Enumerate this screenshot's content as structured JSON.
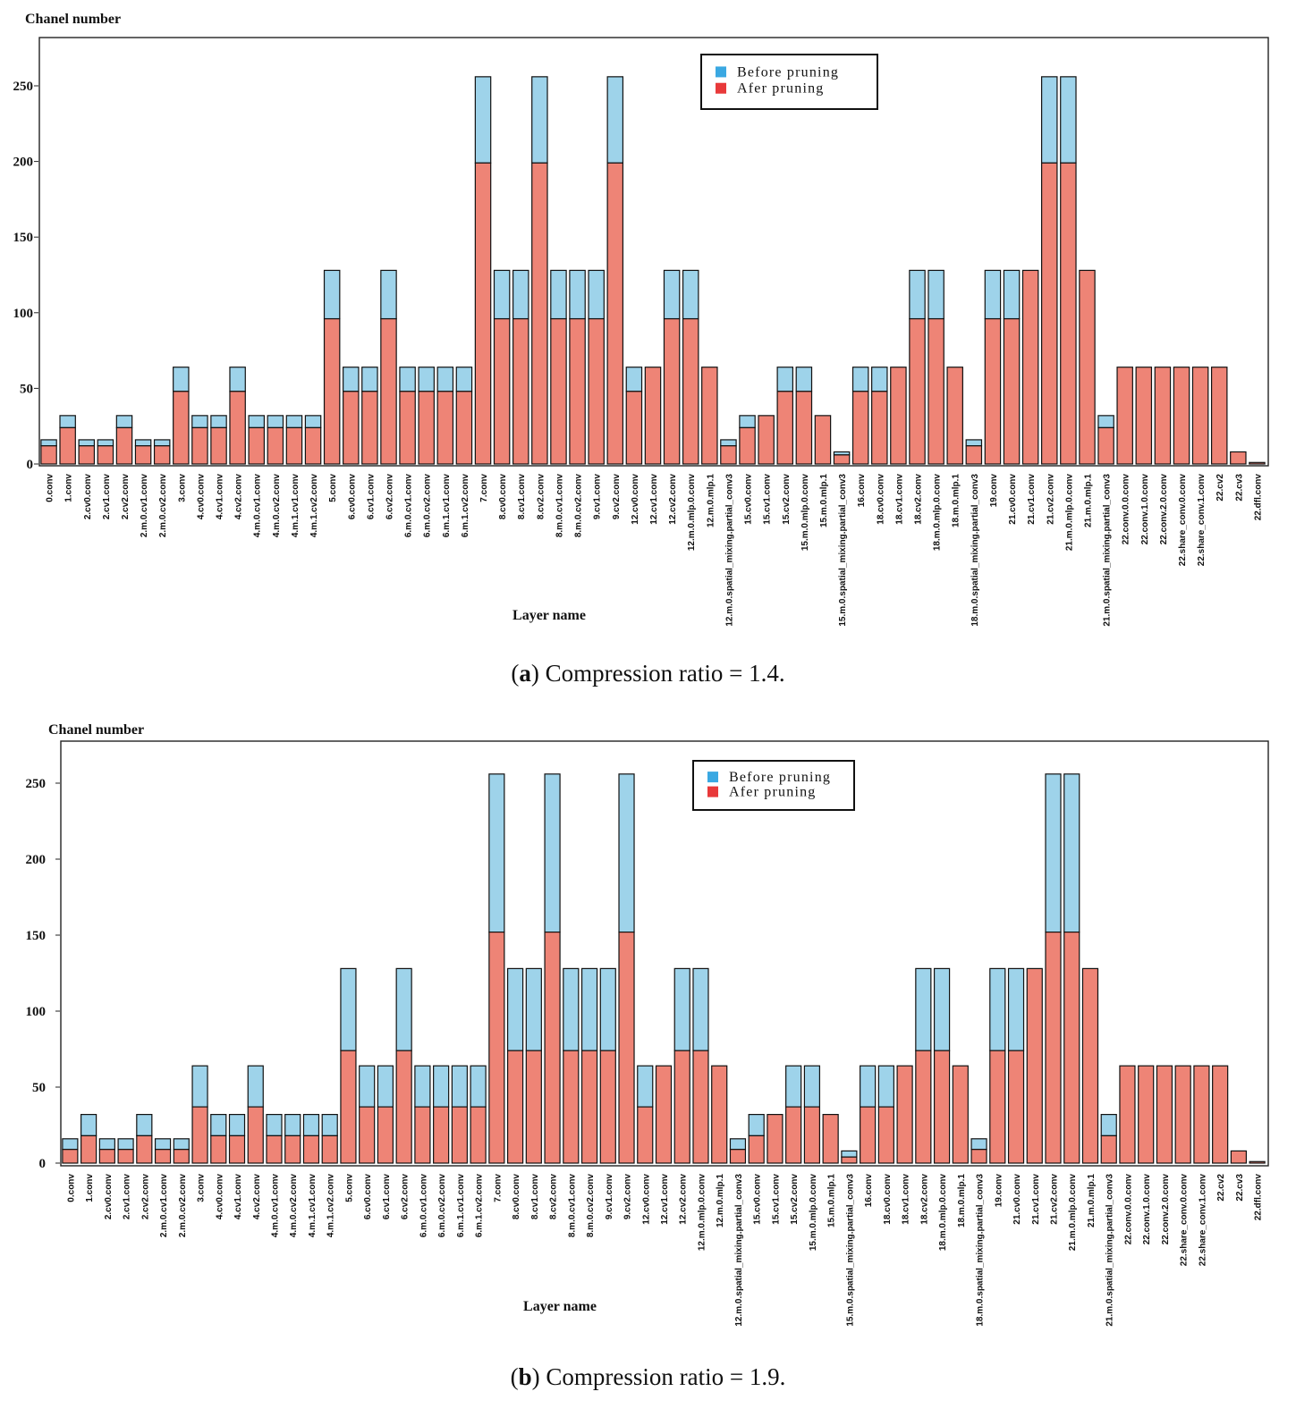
{
  "chart_data": [
    {
      "type": "bar",
      "ylabel": "Chanel number",
      "xlabel": "Layer name",
      "ylim": [
        0,
        270
      ],
      "yticks": [
        0,
        50,
        100,
        150,
        200,
        250
      ],
      "legend_position": "top-center",
      "caption": {
        "tag": "a",
        "text": ") Compression ratio = 1.4."
      },
      "categories": [
        "0.conv",
        "1.conv",
        "2.cv0.conv",
        "2.cv1.conv",
        "2.cv2.conv",
        "2.m.0.cv1.conv",
        "2.m.0.cv2.conv",
        "3.conv",
        "4.cv0.conv",
        "4.cv1.conv",
        "4.cv2.conv",
        "4.m.0.cv1.conv",
        "4.m.0.cv2.conv",
        "4.m.1.cv1.conv",
        "4.m.1.cv2.conv",
        "5.conv",
        "6.cv0.conv",
        "6.cv1.conv",
        "6.cv2.conv",
        "6.m.0.cv1.conv",
        "6.m.0.cv2.conv",
        "6.m.1.cv1.conv",
        "6.m.1.cv2.conv",
        "7.conv",
        "8.cv0.conv",
        "8.cv1.conv",
        "8.cv2.conv",
        "8.m.0.cv1.conv",
        "8.m.0.cv2.conv",
        "9.cv1.conv",
        "9.cv2.conv",
        "12.cv0.conv",
        "12.cv1.conv",
        "12.cv2.conv",
        "12.m.0.mlp.0.conv",
        "12.m.0.mlp.1",
        "12.m.0.spatial_mixing.partial_conv3",
        "15.cv0.conv",
        "15.cv1.conv",
        "15.cv2.conv",
        "15.m.0.mlp.0.conv",
        "15.m.0.mlp.1",
        "15.m.0.spatial_mixing.partial_conv3",
        "16.conv",
        "18.cv0.conv",
        "18.cv1.conv",
        "18.cv2.conv",
        "18.m.0.mlp.0.conv",
        "18.m.0.mlp.1",
        "18.m.0.spatial_mixing.partial_conv3",
        "19.conv",
        "21.cv0.conv",
        "21.cv1.conv",
        "21.cv2.conv",
        "21.m.0.mlp.0.conv",
        "21.m.0.mlp.1",
        "21.m.0.spatial_mixing.partial_conv3",
        "22.conv.0.0.conv",
        "22.conv.1.0.conv",
        "22.conv.2.0.conv",
        "22.share_conv.0.conv",
        "22.share_conv.1.conv",
        "22.cv2",
        "22.cv3",
        "22.dfl.conv"
      ],
      "series": [
        {
          "name": "Before pruning",
          "color": "#9ed3ea",
          "values": [
            16,
            32,
            16,
            16,
            32,
            16,
            16,
            64,
            32,
            32,
            64,
            32,
            32,
            32,
            32,
            128,
            64,
            64,
            128,
            64,
            64,
            64,
            64,
            256,
            128,
            128,
            256,
            128,
            128,
            128,
            256,
            64,
            64,
            128,
            128,
            64,
            16,
            32,
            32,
            64,
            64,
            32,
            8,
            64,
            64,
            64,
            128,
            128,
            64,
            16,
            128,
            128,
            128,
            256,
            256,
            128,
            32,
            64,
            64,
            64,
            64,
            64,
            64,
            8,
            1
          ]
        },
        {
          "name": "Afer pruning",
          "color": "#ee8476",
          "values": [
            12,
            24,
            12,
            12,
            24,
            12,
            12,
            48,
            24,
            24,
            48,
            24,
            24,
            24,
            24,
            96,
            48,
            48,
            96,
            48,
            48,
            48,
            48,
            199,
            96,
            96,
            199,
            96,
            96,
            96,
            199,
            48,
            64,
            96,
            96,
            64,
            12,
            24,
            32,
            48,
            48,
            32,
            6,
            48,
            48,
            64,
            96,
            96,
            64,
            12,
            96,
            96,
            128,
            199,
            199,
            128,
            24,
            64,
            64,
            64,
            64,
            64,
            64,
            8,
            1
          ]
        }
      ]
    },
    {
      "type": "bar",
      "ylabel": "Chanel number",
      "xlabel": "Layer name",
      "ylim": [
        0,
        270
      ],
      "yticks": [
        0,
        50,
        100,
        150,
        200,
        250
      ],
      "legend_position": "top-center",
      "caption": {
        "tag": "b",
        "text": ") Compression ratio = 1.9."
      },
      "categories": [
        "0.conv",
        "1.conv",
        "2.cv0.conv",
        "2.cv1.conv",
        "2.cv2.conv",
        "2.m.0.cv1.conv",
        "2.m.0.cv2.conv",
        "3.conv",
        "4.cv0.conv",
        "4.cv1.conv",
        "4.cv2.conv",
        "4.m.0.cv1.conv",
        "4.m.0.cv2.conv",
        "4.m.1.cv1.conv",
        "4.m.1.cv2.conv",
        "5.conv",
        "6.cv0.conv",
        "6.cv1.conv",
        "6.cv2.conv",
        "6.m.0.cv1.conv",
        "6.m.0.cv2.conv",
        "6.m.1.cv1.conv",
        "6.m.1.cv2.conv",
        "7.conv",
        "8.cv0.conv",
        "8.cv1.conv",
        "8.cv2.conv",
        "8.m.0.cv1.conv",
        "8.m.0.cv2.conv",
        "9.cv1.conv",
        "9.cv2.conv",
        "12.cv0.conv",
        "12.cv1.conv",
        "12.cv2.conv",
        "12.m.0.mlp.0.conv",
        "12.m.0.mlp.1",
        "12.m.0.spatial_mixing.partial_conv3",
        "15.cv0.conv",
        "15.cv1.conv",
        "15.cv2.conv",
        "15.m.0.mlp.0.conv",
        "15.m.0.mlp.1",
        "15.m.0.spatial_mixing.partial_conv3",
        "16.conv",
        "18.cv0.conv",
        "18.cv1.conv",
        "18.cv2.conv",
        "18.m.0.mlp.0.conv",
        "18.m.0.mlp.1",
        "18.m.0.spatial_mixing.partial_conv3",
        "19.conv",
        "21.cv0.conv",
        "21.cv1.conv",
        "21.cv2.conv",
        "21.m.0.mlp.0.conv",
        "21.m.0.mlp.1",
        "21.m.0.spatial_mixing.partial_conv3",
        "22.conv.0.0.conv",
        "22.conv.1.0.conv",
        "22.conv.2.0.conv",
        "22.share_conv.0.conv",
        "22.share_conv.1.conv",
        "22.cv2",
        "22.cv3",
        "22.dfl.conv"
      ],
      "series": [
        {
          "name": "Before pruning",
          "color": "#9ed3ea",
          "values": [
            16,
            32,
            16,
            16,
            32,
            16,
            16,
            64,
            32,
            32,
            64,
            32,
            32,
            32,
            32,
            128,
            64,
            64,
            128,
            64,
            64,
            64,
            64,
            256,
            128,
            128,
            256,
            128,
            128,
            128,
            256,
            64,
            64,
            128,
            128,
            64,
            16,
            32,
            32,
            64,
            64,
            32,
            8,
            64,
            64,
            64,
            128,
            128,
            64,
            16,
            128,
            128,
            128,
            256,
            256,
            128,
            32,
            64,
            64,
            64,
            64,
            64,
            64,
            8,
            1
          ]
        },
        {
          "name": "Afer pruning",
          "color": "#ee8476",
          "values": [
            9,
            18,
            9,
            9,
            18,
            9,
            9,
            37,
            18,
            18,
            37,
            18,
            18,
            18,
            18,
            74,
            37,
            37,
            74,
            37,
            37,
            37,
            37,
            152,
            74,
            74,
            152,
            74,
            74,
            74,
            152,
            37,
            64,
            74,
            74,
            64,
            9,
            18,
            32,
            37,
            37,
            32,
            4,
            37,
            37,
            64,
            74,
            74,
            64,
            9,
            74,
            74,
            128,
            152,
            152,
            128,
            18,
            64,
            64,
            64,
            64,
            64,
            64,
            8,
            1
          ]
        }
      ]
    }
  ]
}
